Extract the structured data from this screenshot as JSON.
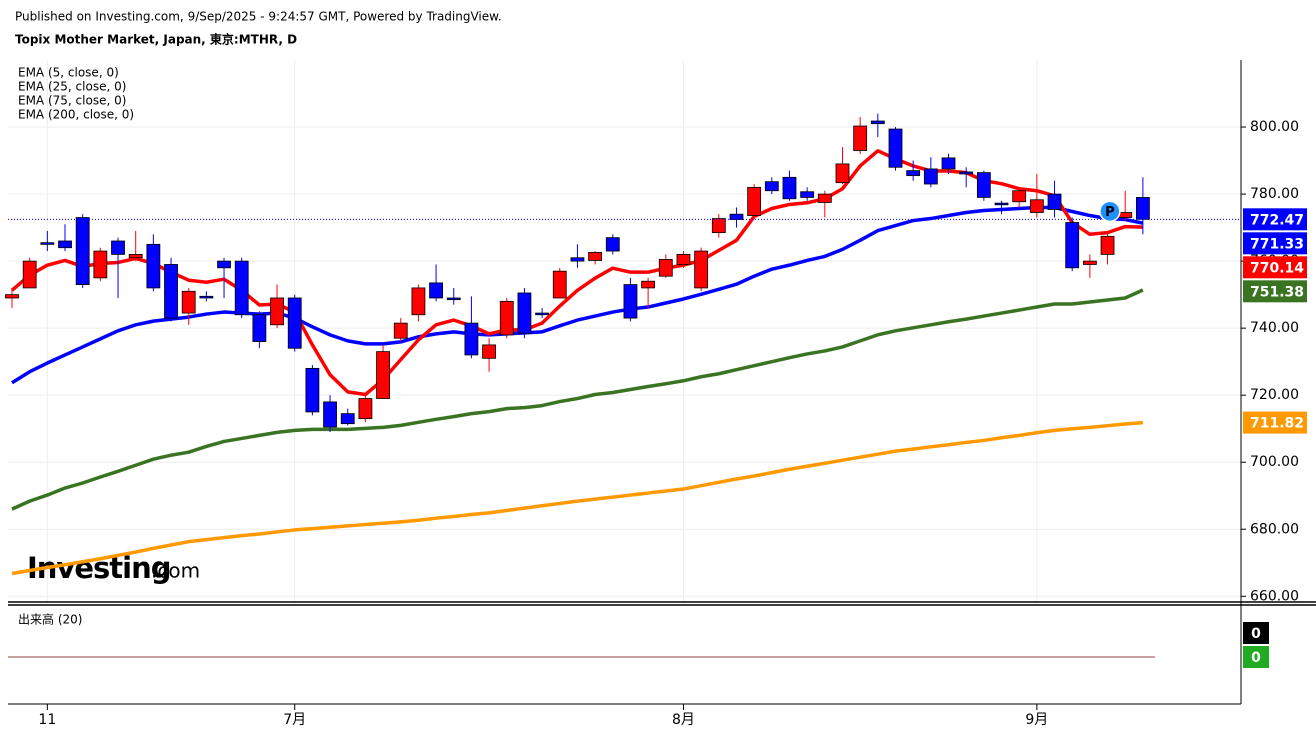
{
  "header": {
    "published": "Published on Investing.com, 9/Sep/2025 - 9:24:57 GMT, Powered by TradingView.",
    "symbol": "Topix Mother Market, Japan, 東京:MTHR, D"
  },
  "watermark": {
    "brand": "Investing",
    "suffix": ".com"
  },
  "chart_data": {
    "type": "candlestick",
    "categories": [
      null,
      null,
      "11",
      null,
      null,
      null,
      null,
      null,
      null,
      null,
      null,
      null,
      null,
      null,
      null,
      null,
      "7月",
      null,
      null,
      null,
      null,
      null,
      null,
      null,
      null,
      null,
      null,
      null,
      null,
      null,
      null,
      null,
      null,
      null,
      null,
      null,
      null,
      null,
      "8月",
      null,
      null,
      null,
      null,
      null,
      null,
      null,
      null,
      null,
      null,
      null,
      null,
      null,
      null,
      null,
      null,
      null,
      null,
      null,
      "9月",
      null,
      null,
      null,
      null,
      null,
      null
    ],
    "open": [
      749,
      752,
      765.5,
      766,
      773,
      755,
      766,
      761,
      765,
      759,
      744.5,
      749.5,
      760,
      760,
      744,
      741,
      749,
      728,
      718,
      714.5,
      713,
      719,
      737,
      744,
      753.5,
      749,
      741.5,
      731,
      738,
      750.5,
      744.5,
      749,
      761,
      760.2,
      767,
      753,
      752,
      755.5,
      759,
      752,
      768.5,
      774,
      773.6,
      783.7,
      785,
      780.7,
      777.5,
      783.4,
      793,
      801.8,
      799.4,
      787,
      787.5,
      790.8,
      786.6,
      786.4,
      777.3,
      777.7,
      774.5,
      780,
      771.5,
      759,
      762,
      773,
      779
    ],
    "high": [
      752,
      761,
      769,
      771,
      774,
      764,
      767,
      769,
      768,
      761,
      752,
      751,
      761,
      761,
      745,
      753,
      750,
      729,
      720,
      716,
      720,
      735,
      743,
      753,
      759,
      752,
      749.5,
      737,
      749,
      752,
      746,
      758,
      765,
      763,
      768,
      755,
      755,
      762,
      763,
      764,
      774,
      776,
      783,
      785,
      787,
      782,
      781,
      794,
      803,
      804,
      800,
      790,
      791,
      792,
      788,
      787,
      778,
      782,
      786,
      784,
      773,
      762,
      768,
      781,
      785
    ],
    "low": [
      746,
      752,
      763,
      763,
      752,
      754,
      749,
      760,
      751,
      742,
      741,
      748,
      749,
      743,
      734,
      740,
      733,
      714,
      709,
      711,
      712,
      719,
      736,
      742,
      748,
      747,
      731,
      727,
      737,
      737,
      743,
      749,
      758,
      759,
      762,
      742,
      746,
      755,
      758,
      751,
      767,
      770,
      773,
      780,
      778,
      778,
      773,
      783,
      792,
      797,
      787,
      784,
      782,
      786,
      782,
      778,
      774,
      776,
      773,
      773,
      757,
      755,
      759,
      772,
      768
    ],
    "close": [
      750,
      760,
      765,
      764,
      753,
      763,
      762,
      762,
      752,
      743,
      751,
      749,
      758,
      744,
      736,
      749,
      734,
      715,
      710.5,
      711.5,
      719,
      733,
      741.5,
      752,
      749,
      748.5,
      732,
      735,
      748,
      738.5,
      744,
      757,
      760,
      762.6,
      763,
      743,
      754,
      760.5,
      762,
      763,
      772.7,
      772.4,
      782,
      781,
      778.6,
      779,
      780,
      789,
      800.3,
      801,
      788,
      785.5,
      783,
      787.5,
      786,
      779,
      776.8,
      781,
      778.3,
      775.4,
      758,
      760,
      767.4,
      774.5,
      772.47
    ],
    "up_color": "#ff0000",
    "down_color": "#0000ff",
    "series": [
      {
        "name": "EMA (5, close, 0)",
        "color": "#ff0000",
        "values": [
          751.3,
          755.8,
          758.8,
          760.2,
          758.4,
          759.3,
          759.6,
          760.8,
          759.3,
          756.7,
          754.3,
          753.7,
          754.6,
          751.3,
          746.9,
          747.2,
          744.8,
          735,
          726.1,
          721,
          720.2,
          724.6,
          730.6,
          736.5,
          741,
          742.4,
          740.7,
          738.3,
          739.5,
          739.5,
          741.5,
          746.6,
          751.3,
          754.9,
          757.9,
          756.7,
          756.7,
          757.9,
          758.8,
          760.2,
          763.2,
          766.2,
          773.3,
          775.7,
          776.9,
          777.4,
          778.6,
          781.6,
          788.4,
          792.9,
          790.5,
          788.4,
          786.9,
          786.9,
          786.4,
          784,
          783.1,
          781.6,
          781,
          779.5,
          771.5,
          768,
          768.5,
          770.3,
          770.14
        ]
      },
      {
        "name": "EMA (25, close, 0)",
        "color": "#0000ff",
        "values": [
          723.7,
          727,
          729.6,
          732,
          734.4,
          736.8,
          739.2,
          741,
          742.1,
          742.7,
          743.3,
          744.2,
          744.8,
          744.5,
          744.2,
          744.5,
          743,
          740.4,
          738,
          736.2,
          735.3,
          735.3,
          735.9,
          737.4,
          738.3,
          738.9,
          738.3,
          738,
          738.3,
          738.6,
          738.9,
          740.7,
          742.4,
          743.6,
          744.8,
          745.7,
          746.3,
          747.5,
          748.7,
          750.1,
          751.6,
          753.1,
          755.5,
          757.6,
          758.8,
          760.2,
          761.4,
          763.5,
          766.2,
          769.1,
          770.6,
          772.1,
          772.7,
          773.6,
          774.5,
          775.1,
          775.4,
          775.7,
          776,
          776,
          774.8,
          773.6,
          772.7,
          772.4,
          771.33
        ]
      },
      {
        "name": "EMA (75, close, 0)",
        "color": "#3a7423",
        "values": [
          686,
          688.4,
          690.2,
          692.3,
          693.8,
          695.6,
          697.3,
          699.1,
          700.9,
          702.1,
          703,
          704.7,
          706.2,
          707.1,
          708,
          708.9,
          709.5,
          709.8,
          709.8,
          709.8,
          710.1,
          710.4,
          711,
          711.9,
          712.8,
          713.6,
          714.5,
          715.1,
          716,
          716.3,
          716.9,
          718.1,
          719,
          720.2,
          720.8,
          721.7,
          722.6,
          723.4,
          724.3,
          725.5,
          726.4,
          727.6,
          728.8,
          730,
          731.2,
          732.3,
          733.2,
          734.4,
          736.2,
          738,
          739.2,
          740.1,
          741,
          741.9,
          742.7,
          743.6,
          744.5,
          745.4,
          746.3,
          747.2,
          747.2,
          747.8,
          748.4,
          749,
          751.38
        ]
      },
      {
        "name": "EMA (200, close, 0)",
        "color": "#ff9900",
        "values": [
          666.8,
          667.7,
          668.6,
          669.4,
          670.3,
          671.2,
          672.2,
          673.2,
          674.3,
          675.3,
          676.3,
          676.9,
          677.5,
          678.1,
          678.6,
          679.2,
          679.8,
          680.2,
          680.6,
          681,
          681.4,
          681.8,
          682.2,
          682.7,
          683.3,
          683.8,
          684.4,
          684.9,
          685.6,
          686.3,
          687,
          687.7,
          688.4,
          689,
          689.6,
          690.2,
          690.8,
          691.4,
          692,
          693,
          694,
          695,
          695.9,
          696.9,
          697.9,
          698.8,
          699.7,
          700.6,
          701.5,
          702.4,
          703.3,
          703.9,
          704.6,
          705.2,
          705.9,
          706.5,
          707.3,
          708,
          708.8,
          709.5,
          710,
          710.4,
          710.9,
          711.4,
          711.82
        ]
      }
    ],
    "ylim": [
      658,
      820
    ],
    "yticks": [
      {
        "value": 660,
        "label": "660.00"
      },
      {
        "value": 680,
        "label": "680.00"
      },
      {
        "value": 700,
        "label": "700.00"
      },
      {
        "value": 720,
        "label": "720.00"
      },
      {
        "value": 740,
        "label": "740.00"
      },
      {
        "value": 760,
        "label": "760.00"
      },
      {
        "value": 780,
        "label": "780.00"
      },
      {
        "value": 800,
        "label": "800.00"
      }
    ],
    "grid": true,
    "marker_label": "P",
    "volume": {
      "title": "出来高 (20)",
      "values": [
        0,
        0
      ]
    }
  }
}
